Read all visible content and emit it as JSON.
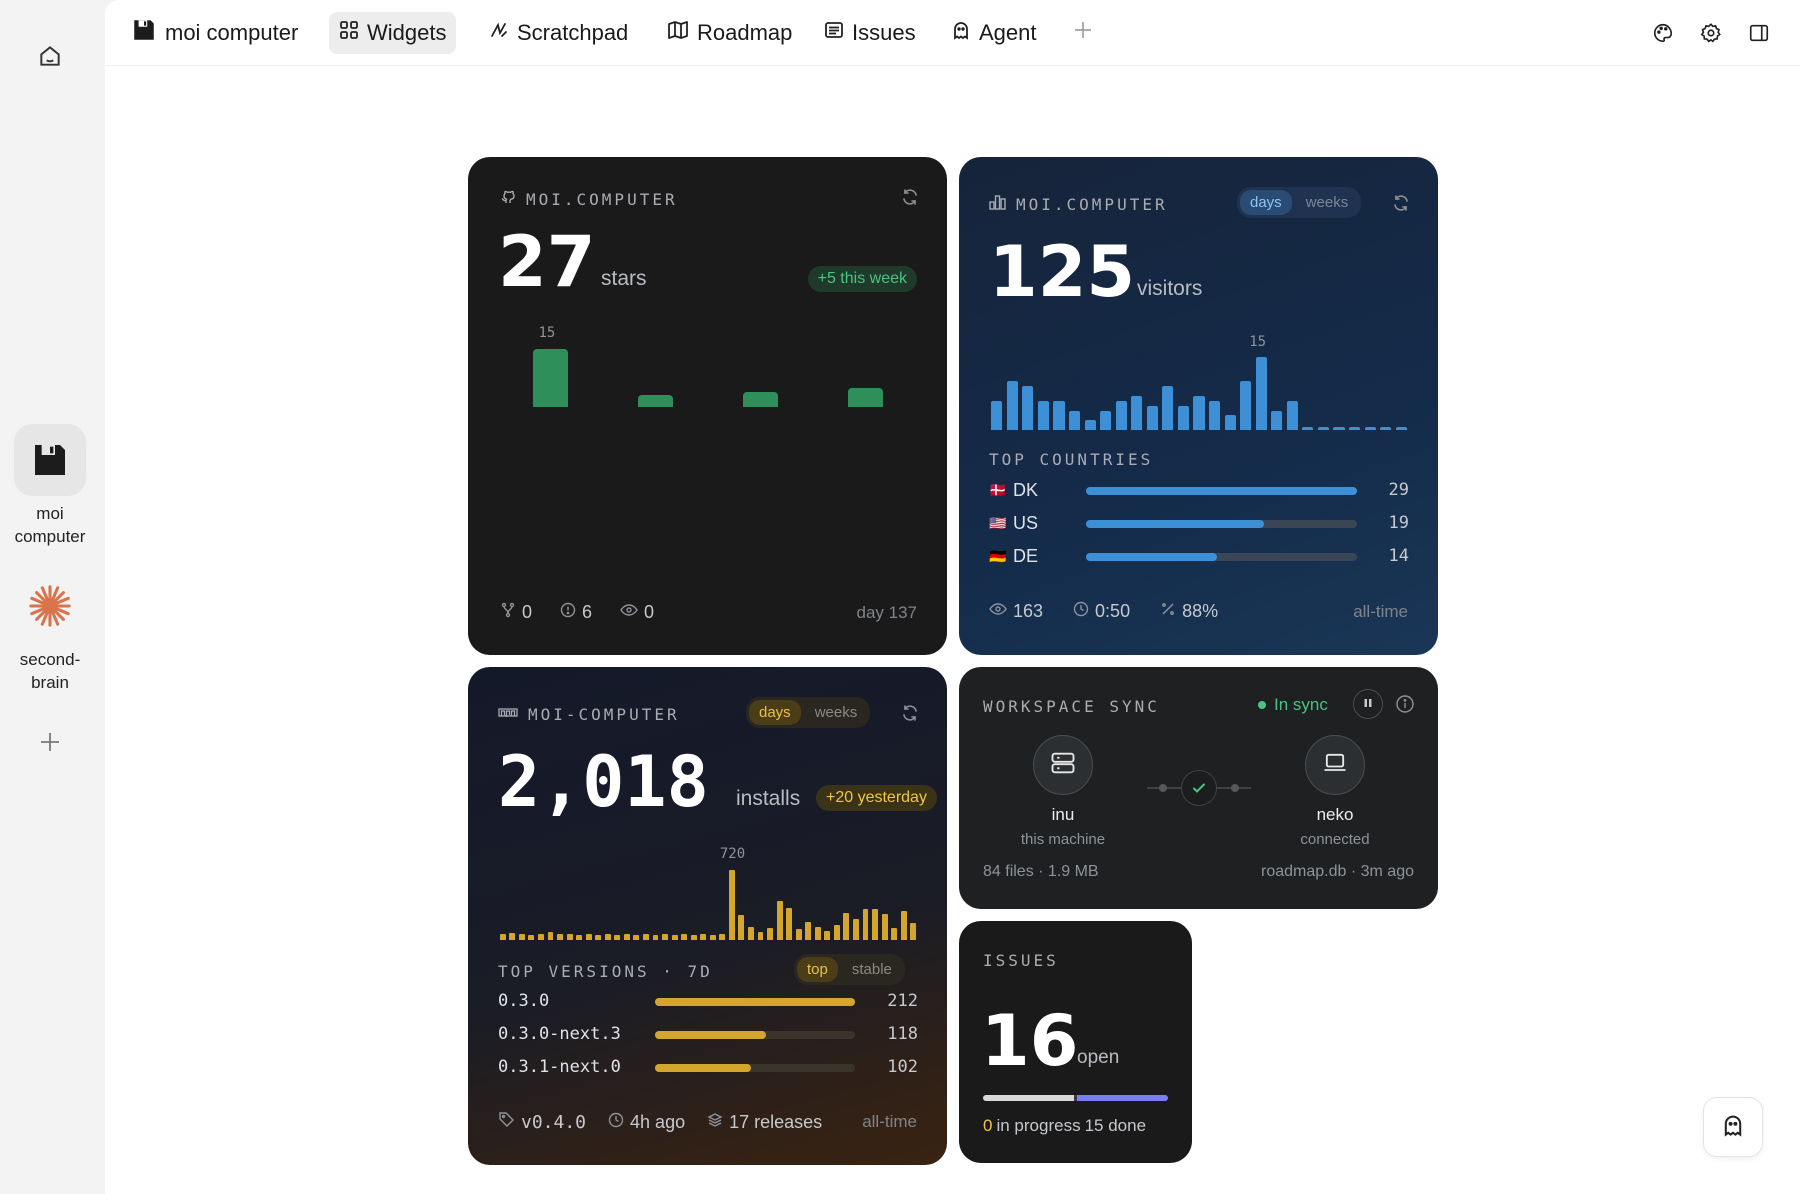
{
  "rail": {
    "workspaces": [
      {
        "label_line1": "moi",
        "label_line2": "computer"
      },
      {
        "label_line1": "second-",
        "label_line2": "brain"
      }
    ]
  },
  "topbar": {
    "workspace_name": "moi computer",
    "tabs": [
      {
        "label": "Widgets",
        "icon": "grid-icon",
        "active": true
      },
      {
        "label": "Scratchpad",
        "icon": "scribble-icon"
      },
      {
        "label": "Roadmap",
        "icon": "map-icon"
      },
      {
        "label": "Issues",
        "icon": "list-icon"
      },
      {
        "label": "Agent",
        "icon": "ghost-icon"
      }
    ]
  },
  "stars_card": {
    "source": "MOI.COMPUTER",
    "value": "27",
    "unit": "stars",
    "delta": "+5 this week",
    "peak_label": "15",
    "forks": "0",
    "issues": "6",
    "watchers": "0",
    "age": "day 137",
    "accent": "#2f8f5b"
  },
  "visitors_card": {
    "source": "MOI.COMPUTER",
    "toggle": {
      "on": "days",
      "off": "weeks"
    },
    "value": "125",
    "unit": "visitors",
    "peak_label": "15",
    "countries_title": "TOP COUNTRIES",
    "countries": [
      {
        "flag": "🇩🇰",
        "code": "DK",
        "value": 29
      },
      {
        "flag": "🇺🇸",
        "code": "US",
        "value": 19
      },
      {
        "flag": "🇩🇪",
        "code": "DE",
        "value": 14
      }
    ],
    "views": "163",
    "duration": "0:50",
    "bounce": "88%",
    "range": "all-time",
    "accent": "#3d8fd6"
  },
  "installs_card": {
    "source": "MOI-COMPUTER",
    "toggle": {
      "on": "days",
      "off": "weeks"
    },
    "value": "2,018",
    "unit": "installs",
    "delta": "+20 yesterday",
    "peak_label": "720",
    "versions_title": "TOP VERSIONS · 7D",
    "versions_toggle": {
      "on": "top",
      "off": "stable"
    },
    "versions": [
      {
        "name": "0.3.0",
        "value": 212
      },
      {
        "name": "0.3.0-next.3",
        "value": 118
      },
      {
        "name": "0.3.1-next.0",
        "value": 102
      }
    ],
    "latest": "v0.4.0",
    "updated": "4h ago",
    "releases": "17 releases",
    "range": "all-time",
    "accent": "#d4a72c"
  },
  "sync_card": {
    "title": "WORKSPACE SYNC",
    "status": "In sync",
    "local": {
      "name": "inu",
      "sub": "this machine"
    },
    "remote": {
      "name": "neko",
      "sub": "connected"
    },
    "files": "84 files · 1.9 MB",
    "last": "roadmap.db · 3m ago"
  },
  "issues_card": {
    "title": "ISSUES",
    "value": "16",
    "unit": "open",
    "in_progress_count": "0",
    "in_progress_label": "in progress",
    "done": "15 done",
    "fraction_open": 0.5
  },
  "chart_data": [
    {
      "type": "bar",
      "series": [
        {
          "values": [
            15,
            3,
            4,
            5
          ]
        }
      ],
      "ylim": [
        0,
        15
      ]
    },
    {
      "type": "bar",
      "series": [
        {
          "values": [
            6,
            10,
            9,
            6,
            6,
            4,
            2,
            4,
            6,
            7,
            5,
            9,
            5,
            7,
            6,
            3,
            10,
            15,
            4,
            6,
            0,
            0,
            0,
            0,
            0,
            0,
            0
          ]
        }
      ],
      "ylim": [
        0,
        15
      ]
    },
    {
      "type": "bar",
      "series": [
        {
          "values": [
            60,
            70,
            60,
            50,
            60,
            80,
            60,
            60,
            50,
            60,
            50,
            60,
            50,
            60,
            50,
            60,
            50,
            60,
            50,
            60,
            50,
            60,
            50,
            60,
            720,
            260,
            130,
            80,
            120,
            400,
            330,
            110,
            190,
            130,
            90,
            150,
            280,
            220,
            320,
            320,
            270,
            120,
            300,
            170
          ]
        }
      ],
      "ylim": [
        0,
        720
      ]
    }
  ]
}
